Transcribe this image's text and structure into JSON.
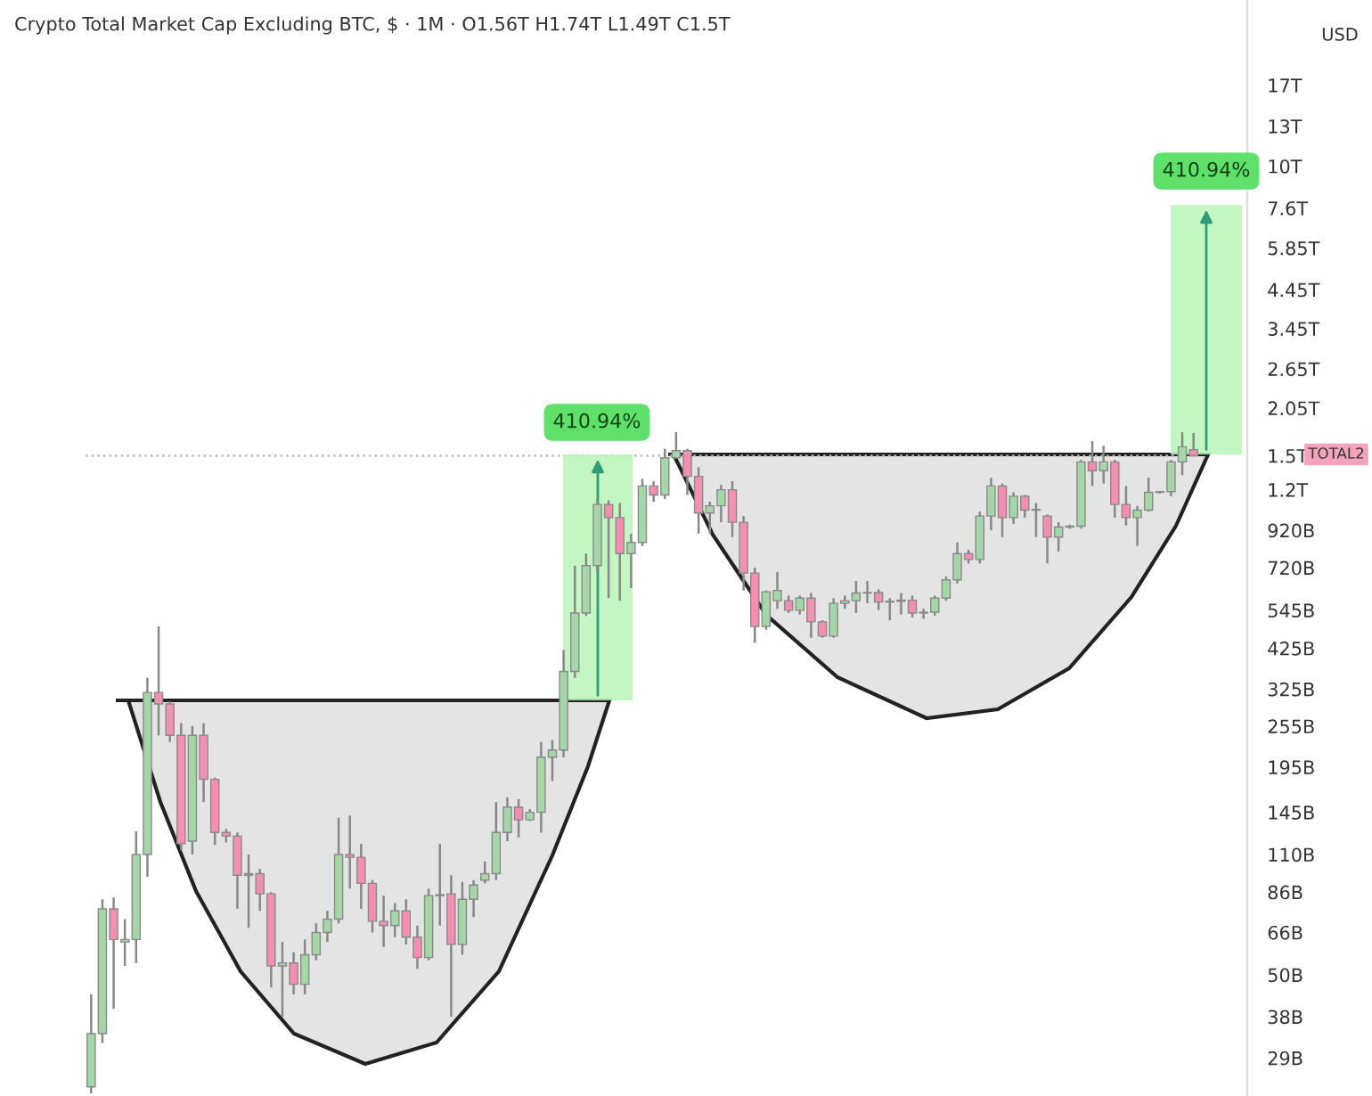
{
  "chart_data": {
    "type": "candlestick",
    "title": "Crypto Total Market Cap Excluding BTC, $ · 1M · O1.56T H1.74T L1.49T C1.5T",
    "ylabel": "USD",
    "log": true,
    "tick_labels": "y",
    "grid": false,
    "categories": [
      null,
      null,
      null,
      null,
      null,
      null,
      null,
      null,
      null,
      null,
      null,
      null,
      null,
      null,
      null,
      null,
      null,
      null,
      null,
      null,
      null,
      null,
      null,
      null,
      null,
      null,
      null,
      null,
      null,
      null,
      null,
      null,
      null,
      null,
      null,
      null,
      null,
      null,
      null,
      null,
      null,
      null,
      null,
      null,
      null,
      null,
      null,
      null,
      null,
      null,
      null,
      null,
      null,
      null,
      null,
      null,
      null,
      null,
      null,
      null,
      null,
      null,
      null,
      null,
      null,
      null,
      null,
      null,
      null,
      null,
      null,
      null,
      null,
      null,
      null,
      null,
      null,
      null,
      null,
      null,
      null,
      null,
      null,
      null,
      null,
      null,
      null,
      null,
      null,
      null,
      null,
      null,
      null,
      null,
      null,
      null,
      null,
      null,
      null
    ],
    "ohlc": [
      [
        24000000000.0,
        44000000000.0,
        23000000000.0,
        34000000000.0
      ],
      [
        34000000000.0,
        82000000000.0,
        32000000000.0,
        77000000000.0
      ],
      [
        77000000000.0,
        83000000000.0,
        40000000000.0,
        63000000000.0
      ],
      [
        62000000000.0,
        72000000000.0,
        53000000000.0,
        63000000000.0
      ],
      [
        63000000000.0,
        128000000000.0,
        54000000000.0,
        110000000000.0
      ],
      [
        110000000000.0,
        350000000000.0,
        95000000000.0,
        318000000000.0
      ],
      [
        318000000000.0,
        490000000000.0,
        240000000000.0,
        295000000000.0
      ],
      [
        295000000000.0,
        300000000000.0,
        230000000000.0,
        240000000000.0
      ],
      [
        240000000000.0,
        260000000000.0,
        113000000000.0,
        118000000000.0
      ],
      [
        120000000000.0,
        255000000000.0,
        110000000000.0,
        240000000000.0
      ],
      [
        240000000000.0,
        260000000000.0,
        155000000000.0,
        180000000000.0
      ],
      [
        180000000000.0,
        182000000000.0,
        117000000000.0,
        127000000000.0
      ],
      [
        127000000000.0,
        130000000000.0,
        119000000000.0,
        124000000000.0
      ],
      [
        124000000000.0,
        127000000000.0,
        77000000000.0,
        96000000000.0
      ],
      [
        96000000000.0,
        110000000000.0,
        68000000000.0,
        97000000000.0
      ],
      [
        97000000000.0,
        100000000000.0,
        76000000000.0,
        85000000000.0
      ],
      [
        85000000000.0,
        86000000000.0,
        46000000000.0,
        53000000000.0
      ],
      [
        53000000000.0,
        62000000000.0,
        38000000000.0,
        54000000000.0
      ],
      [
        54000000000.0,
        58000000000.0,
        44000000000.0,
        47000000000.0
      ],
      [
        47000000000.0,
        63000000000.0,
        44000000000.0,
        57000000000.0
      ],
      [
        57000000000.0,
        70000000000.0,
        55000000000.0,
        66000000000.0
      ],
      [
        66000000000.0,
        76000000000.0,
        62000000000.0,
        72000000000.0
      ],
      [
        72000000000.0,
        140000000000.0,
        70000000000.0,
        110000000000.0
      ],
      [
        110000000000.0,
        142000000000.0,
        88000000000.0,
        108000000000.0
      ],
      [
        108000000000.0,
        118000000000.0,
        77000000000.0,
        91000000000.0
      ],
      [
        91000000000.0,
        93000000000.0,
        66000000000.0,
        71000000000.0
      ],
      [
        71000000000.0,
        84000000000.0,
        60000000000.0,
        69000000000.0
      ],
      [
        69000000000.0,
        80000000000.0,
        64000000000.0,
        76000000000.0
      ],
      [
        76000000000.0,
        82000000000.0,
        61000000000.0,
        64000000000.0
      ],
      [
        64000000000.0,
        69000000000.0,
        52000000000.0,
        56000000000.0
      ],
      [
        56000000000.0,
        88000000000.0,
        55000000000.0,
        84000000000.0
      ],
      [
        84000000000.0,
        118000000000.0,
        69000000000.0,
        84500000000.0
      ],
      [
        85000000000.0,
        96000000000.0,
        38000000000.0,
        61000000000.0
      ],
      [
        61000000000.0,
        92000000000.0,
        57000000000.0,
        82000000000.0
      ],
      [
        82000000000.0,
        93000000000.0,
        73000000000.0,
        90000000000.0
      ],
      [
        93000000000.0,
        105000000000.0,
        91000000000.0,
        97000000000.0
      ],
      [
        97000000000.0,
        155000000000.0,
        93000000000.0,
        127000000000.0
      ],
      [
        127000000000.0,
        160000000000.0,
        120000000000.0,
        150000000000.0
      ],
      [
        150000000000.0,
        158000000000.0,
        123000000000.0,
        138000000000.0
      ],
      [
        138000000000.0,
        148000000000.0,
        137000000000.0,
        145000000000.0
      ],
      [
        145000000000.0,
        230000000000.0,
        127000000000.0,
        208000000000.0
      ],
      [
        208000000000.0,
        233000000000.0,
        178000000000.0,
        218000000000.0
      ],
      [
        218000000000.0,
        420000000000.0,
        208000000000.0,
        365000000000.0
      ],
      [
        365000000000.0,
        730000000000.0,
        350000000000.0,
        535000000000.0
      ],
      [
        535000000000.0,
        790000000000.0,
        525000000000.0,
        730000000000.0
      ],
      [
        730000000000.0,
        1130000000000.0,
        700000000000.0,
        1090000000000.0
      ],
      [
        1090000000000.0,
        1120000000000.0,
        590000000000.0,
        1000000000000.0
      ],
      [
        1000000000000.0,
        1100000000000.0,
        580000000000.0,
        790000000000.0
      ],
      [
        790000000000.0,
        900000000000.0,
        630000000000.0,
        850000000000.0
      ],
      [
        850000000000.0,
        1290000000000.0,
        830000000000.0,
        1230000000000.0
      ],
      [
        1230000000000.0,
        1270000000000.0,
        1110000000000.0,
        1160000000000.0
      ],
      [
        1160000000000.0,
        1570000000000.0,
        1130000000000.0,
        1480000000000.0
      ],
      [
        1480000000000.0,
        1750000000000.0,
        1470000000000.0,
        1550000000000.0
      ],
      [
        1550000000000.0,
        1570000000000.0,
        1160000000000.0,
        1310000000000.0
      ],
      [
        1310000000000.0,
        1390000000000.0,
        900000000000.0,
        1030000000000.0
      ],
      [
        1030000000000.0,
        1110000000000.0,
        900000000000.0,
        1080000000000.0
      ],
      [
        1080000000000.0,
        1240000000000.0,
        970000000000.0,
        1200000000000.0
      ],
      [
        1200000000000.0,
        1270000000000.0,
        880000000000.0,
        970000000000.0
      ],
      [
        970000000000.0,
        1010000000000.0,
        620000000000.0,
        695000000000.0
      ],
      [
        695000000000.0,
        720000000000.0,
        440000000000.0,
        490000000000.0
      ],
      [
        490000000000.0,
        620000000000.0,
        480000000000.0,
        615000000000.0
      ],
      [
        580000000000.0,
        700000000000.0,
        550000000000.0,
        620000000000.0
      ],
      [
        580000000000.0,
        600000000000.0,
        535000000000.0,
        545000000000.0
      ],
      [
        545000000000.0,
        600000000000.0,
        530000000000.0,
        590000000000.0
      ],
      [
        590000000000.0,
        610000000000.0,
        455000000000.0,
        505000000000.0
      ],
      [
        505000000000.0,
        510000000000.0,
        455000000000.0,
        460000000000.0
      ],
      [
        460000000000.0,
        590000000000.0,
        455000000000.0,
        570000000000.0
      ],
      [
        570000000000.0,
        600000000000.0,
        550000000000.0,
        580000000000.0
      ],
      [
        580000000000.0,
        660000000000.0,
        535000000000.0,
        610000000000.0
      ],
      [
        610000000000.0,
        660000000000.0,
        570000000000.0,
        612000000000.0
      ],
      [
        612000000000.0,
        625000000000.0,
        545000000000.0,
        575000000000.0
      ],
      [
        575000000000.0,
        590000000000.0,
        510000000000.0,
        578000000000.0
      ],
      [
        578000000000.0,
        610000000000.0,
        530000000000.0,
        582000000000.0
      ],
      [
        582000000000.0,
        600000000000.0,
        520000000000.0,
        535000000000.0
      ],
      [
        535000000000.0,
        550000000000.0,
        515000000000.0,
        538000000000.0
      ],
      [
        538000000000.0,
        600000000000.0,
        525000000000.0,
        590000000000.0
      ],
      [
        590000000000.0,
        680000000000.0,
        580000000000.0,
        665000000000.0
      ],
      [
        665000000000.0,
        850000000000.0,
        650000000000.0,
        790000000000.0
      ],
      [
        790000000000.0,
        810000000000.0,
        740000000000.0,
        760000000000.0
      ],
      [
        760000000000.0,
        1040000000000.0,
        740000000000.0,
        1010000000000.0
      ],
      [
        1010000000000.0,
        1300000000000.0,
        920000000000.0,
        1230000000000.0
      ],
      [
        1230000000000.0,
        1250000000000.0,
        880000000000.0,
        1000000000000.0
      ],
      [
        1000000000000.0,
        1180000000000.0,
        960000000000.0,
        1150000000000.0
      ],
      [
        1150000000000.0,
        1160000000000.0,
        1000000000000.0,
        1050000000000.0
      ],
      [
        1050000000000.0,
        1100000000000.0,
        880000000000.0,
        1055000000000.0
      ],
      [
        1010000000000.0,
        1020000000000.0,
        740000000000.0,
        880000000000.0
      ],
      [
        880000000000.0,
        970000000000.0,
        800000000000.0,
        940000000000.0
      ],
      [
        940000000000.0,
        955000000000.0,
        930000000000.0,
        945000000000.0
      ],
      [
        945000000000.0,
        1460000000000.0,
        930000000000.0,
        1440000000000.0
      ],
      [
        1440000000000.0,
        1650000000000.0,
        1230000000000.0,
        1360000000000.0
      ],
      [
        1360000000000.0,
        1600000000000.0,
        1250000000000.0,
        1440000000000.0
      ],
      [
        1440000000000.0,
        1460000000000.0,
        1000000000000.0,
        1090000000000.0
      ],
      [
        1090000000000.0,
        1230000000000.0,
        950000000000.0,
        1000000000000.0
      ],
      [
        1000000000000.0,
        1080000000000.0,
        830000000000.0,
        1050000000000.0
      ],
      [
        1050000000000.0,
        1300000000000.0,
        1040000000000.0,
        1180000000000.0
      ],
      [
        1180000000000.0,
        1190000000000.0,
        1170000000000.0,
        1185000000000.0
      ],
      [
        1185000000000.0,
        1460000000000.0,
        1150000000000.0,
        1440000000000.0
      ],
      [
        1440000000000.0,
        1750000000000.0,
        1320000000000.0,
        1590000000000.0
      ],
      [
        1560000000000.0,
        1740000000000.0,
        1490000000000.0,
        1500000000000.0
      ]
    ],
    "colors": [
      "#a5d6a7",
      "#a5d6a7",
      "#f48fb1",
      "#a5d6a7",
      "#a5d6a7",
      "#a5d6a7",
      "#f48fb1",
      "#f48fb1",
      "#f48fb1",
      "#a5d6a7",
      "#f48fb1",
      "#f48fb1",
      "#f48fb1",
      "#f48fb1",
      "#a5d6a7",
      "#f48fb1",
      "#f48fb1",
      "#a5d6a7",
      "#f48fb1",
      "#a5d6a7",
      "#a5d6a7",
      "#a5d6a7",
      "#a5d6a7",
      "#f48fb1",
      "#f48fb1",
      "#f48fb1",
      "#f48fb1",
      "#a5d6a7",
      "#f48fb1",
      "#f48fb1",
      "#a5d6a7",
      "#a5d6a7",
      "#f48fb1",
      "#a5d6a7",
      "#a5d6a7",
      "#a5d6a7",
      "#a5d6a7",
      "#a5d6a7",
      "#f48fb1",
      "#a5d6a7",
      "#a5d6a7",
      "#a5d6a7",
      "#a5d6a7",
      "#a5d6a7",
      "#a5d6a7",
      "#a5d6a7",
      "#f48fb1",
      "#f48fb1",
      "#a5d6a7",
      "#a5d6a7",
      "#f48fb1",
      "#a5d6a7",
      "#a5d6a7",
      "#f48fb1",
      "#f48fb1",
      "#a5d6a7",
      "#a5d6a7",
      "#f48fb1",
      "#f48fb1",
      "#f48fb1",
      "#a5d6a7",
      "#a5d6a7",
      "#f48fb1",
      "#a5d6a7",
      "#f48fb1",
      "#f48fb1",
      "#a5d6a7",
      "#a5d6a7",
      "#a5d6a7",
      "#a5d6a7",
      "#f48fb1",
      "#a5d6a7",
      "#a5d6a7",
      "#f48fb1",
      "#a5d6a7",
      "#a5d6a7",
      "#a5d6a7",
      "#a5d6a7",
      "#f48fb1",
      "#a5d6a7",
      "#a5d6a7",
      "#f48fb1",
      "#a5d6a7",
      "#f48fb1",
      "#a5d6a7",
      "#f48fb1",
      "#a5d6a7",
      "#a5d6a7",
      "#a5d6a7",
      "#f48fb1",
      "#a5d6a7",
      "#f48fb1",
      "#f48fb1",
      "#a5d6a7",
      "#a5d6a7",
      "#a5d6a7",
      "#a5d6a7",
      "#a5d6a7",
      "#f48fb1"
    ],
    "ylim": [
      22600000000.0,
      29700000000000.0
    ],
    "yticks": [
      {
        "value": 17000000000000.0,
        "label": "17T"
      },
      {
        "value": 13000000000000.0,
        "label": "13T"
      },
      {
        "value": 10000000000000.0,
        "label": "10T"
      },
      {
        "value": 7600000000000.0,
        "label": "7.6T"
      },
      {
        "value": 5850000000000.0,
        "label": "5.85T"
      },
      {
        "value": 4450000000000.0,
        "label": "4.45T"
      },
      {
        "value": 3450000000000.0,
        "label": "3.45T"
      },
      {
        "value": 2650000000000.0,
        "label": "2.65T"
      },
      {
        "value": 2050000000000.0,
        "label": "2.05T"
      },
      {
        "value": 1500000000000.0,
        "label": "1.5T"
      },
      {
        "value": 1200000000000.0,
        "label": "1.2T"
      },
      {
        "value": 920000000000.0,
        "label": "920B"
      },
      {
        "value": 720000000000.0,
        "label": "720B"
      },
      {
        "value": 545000000000.0,
        "label": "545B"
      },
      {
        "value": 425000000000.0,
        "label": "425B"
      },
      {
        "value": 325000000000.0,
        "label": "325B"
      },
      {
        "value": 255000000000.0,
        "label": "255B"
      },
      {
        "value": 195000000000.0,
        "label": "195B"
      },
      {
        "value": 145000000000.0,
        "label": "145B"
      },
      {
        "value": 110000000000.0,
        "label": "110B"
      },
      {
        "value": 86000000000.0,
        "label": "86B"
      },
      {
        "value": 66000000000.0,
        "label": "66B"
      },
      {
        "value": 50000000000.0,
        "label": "50B"
      },
      {
        "value": 38000000000.0,
        "label": "38B"
      },
      {
        "value": 29000000000.0,
        "label": "29B"
      }
    ],
    "ref_lines": [
      {
        "axis": "y",
        "value": 1500000000000.0,
        "color": "#bbbbbb",
        "line_style": "dotted"
      }
    ],
    "annotations": [
      "410.94%",
      "410.94%",
      "TOTAL2"
    ]
  }
}
